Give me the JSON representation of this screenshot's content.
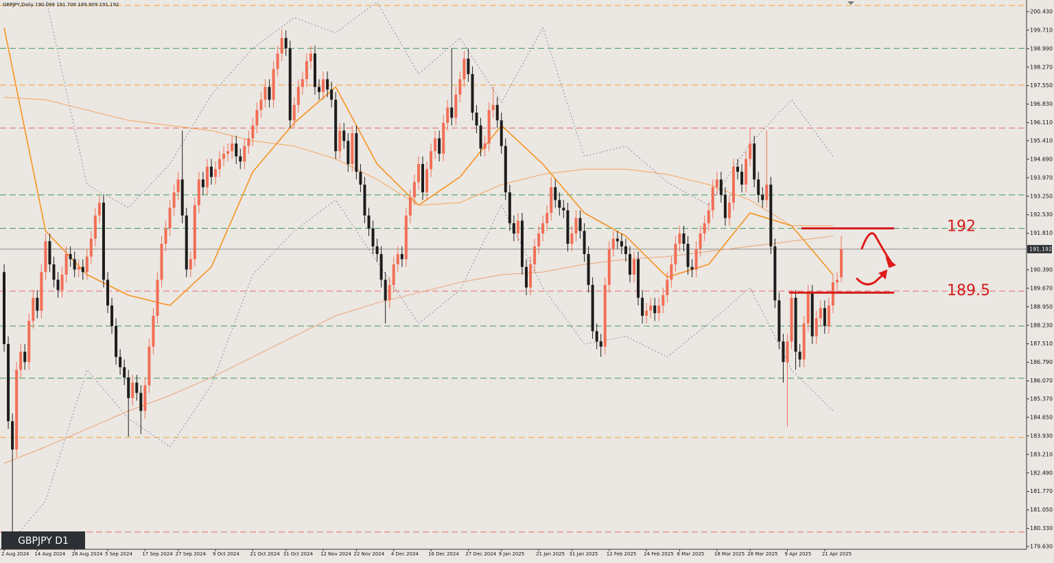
{
  "chart_data": {
    "type": "candlestick",
    "title": "GBPJPY,Daily  190.099 191.708 189.909 191.192",
    "symbol_label": "GBPJPY D1",
    "ylim": [
      179.52,
      200.88
    ],
    "yticks": [
      {
        "value": 200.43,
        "label": "200.430"
      },
      {
        "value": 199.71,
        "label": "199.710"
      },
      {
        "value": 198.99,
        "label": "198.990"
      },
      {
        "value": 198.27,
        "label": "198.270"
      },
      {
        "value": 197.55,
        "label": "197.550"
      },
      {
        "value": 196.83,
        "label": "196.830"
      },
      {
        "value": 196.11,
        "label": "196.110"
      },
      {
        "value": 195.41,
        "label": "195.410"
      },
      {
        "value": 194.69,
        "label": "194.690"
      },
      {
        "value": 193.97,
        "label": "193.970"
      },
      {
        "value": 193.25,
        "label": "193.250"
      },
      {
        "value": 192.53,
        "label": "192.530"
      },
      {
        "value": 191.81,
        "label": "191.810"
      },
      {
        "value": 190.39,
        "label": "190.390"
      },
      {
        "value": 189.67,
        "label": "189.670"
      },
      {
        "value": 188.95,
        "label": "188.950"
      },
      {
        "value": 188.23,
        "label": "188.230"
      },
      {
        "value": 187.51,
        "label": "187.510"
      },
      {
        "value": 186.79,
        "label": "186.790"
      },
      {
        "value": 186.07,
        "label": "186.070"
      },
      {
        "value": 185.37,
        "label": "185.370"
      },
      {
        "value": 184.65,
        "label": "184.650"
      },
      {
        "value": 183.93,
        "label": "183.930"
      },
      {
        "value": 183.21,
        "label": "183.210"
      },
      {
        "value": 182.49,
        "label": "182.490"
      },
      {
        "value": 181.77,
        "label": "181.770"
      },
      {
        "value": 181.05,
        "label": "181.050"
      },
      {
        "value": 180.33,
        "label": "180.330"
      },
      {
        "value": 179.63,
        "label": "179.630"
      }
    ],
    "last_price": {
      "value": 191.192,
      "label": "191.192"
    },
    "bull_color": "#f26e55",
    "bear_color": "#1c1c1c",
    "categories": [
      "2 Aug 2024",
      null,
      null,
      null,
      null,
      null,
      null,
      null,
      "14 Aug 2024",
      null,
      null,
      null,
      null,
      null,
      null,
      null,
      null,
      "26 Aug 2024",
      null,
      null,
      null,
      null,
      null,
      null,
      null,
      "5 Sep 2024",
      null,
      null,
      null,
      null,
      null,
      null,
      null,
      null,
      "17 Sep 2024",
      null,
      null,
      null,
      null,
      null,
      null,
      null,
      "27 Sep 2024",
      null,
      null,
      null,
      null,
      null,
      null,
      null,
      null,
      "9 Oct 2024",
      null,
      null,
      null,
      null,
      null,
      null,
      null,
      null,
      "21 Oct 2024",
      null,
      null,
      null,
      null,
      null,
      null,
      null,
      "31 Oct 2024",
      null,
      null,
      null,
      null,
      null,
      null,
      null,
      null,
      "12 Nov 2024",
      null,
      null,
      null,
      null,
      null,
      null,
      null,
      "22 Nov 2024",
      null,
      null,
      null,
      null,
      null,
      null,
      null,
      null,
      "4 Dec 2024",
      null,
      null,
      null,
      null,
      null,
      null,
      null,
      null,
      "16 Dec 2024",
      null,
      null,
      null,
      null,
      null,
      null,
      null,
      null,
      "27 Dec 2024",
      null,
      null,
      null,
      null,
      null,
      null,
      null,
      "9 Jan 2025",
      null,
      null,
      null,
      null,
      null,
      null,
      null,
      null,
      "21 Jan 2025",
      null,
      null,
      null,
      null,
      null,
      null,
      null,
      "31 Jan 2025",
      null,
      null,
      null,
      null,
      null,
      null,
      null,
      null,
      "12 Feb 2025",
      null,
      null,
      null,
      null,
      null,
      null,
      null,
      null,
      "24 Feb 2025",
      null,
      null,
      null,
      null,
      null,
      null,
      null,
      "6 Mar 2025",
      null,
      null,
      null,
      null,
      null,
      null,
      null,
      null,
      "18 Mar 2025",
      null,
      null,
      null,
      null,
      null,
      null,
      null,
      "28 Mar 2025",
      null,
      null,
      null,
      null,
      null,
      null,
      null,
      null,
      "9 Apr 2025",
      null,
      null,
      null,
      null,
      null,
      null,
      null,
      null,
      "21 Apr 2025",
      null,
      null,
      null,
      null
    ],
    "open": [
      190.3,
      187.5,
      184.5,
      183.4,
      186.5,
      187.2,
      186.8,
      188.4,
      189.3,
      188.8,
      190.3,
      191.5,
      190.6,
      190.0,
      189.6,
      190.2,
      191.0,
      190.8,
      190.4,
      190.5,
      190.3,
      190.9,
      191.6,
      192.5,
      193.0,
      190.0,
      189.0,
      188.2,
      187.0,
      186.6,
      186.2,
      185.4,
      186.0,
      185.6,
      184.9,
      185.9,
      187.4,
      188.6,
      190.0,
      191.4,
      192.0,
      192.8,
      193.4,
      193.9,
      192.5,
      190.4,
      190.8,
      192.9,
      193.9,
      193.6,
      194.4,
      194.0,
      194.3,
      194.7,
      194.9,
      195.0,
      195.3,
      194.8,
      194.6,
      195.2,
      195.5,
      196.0,
      196.6,
      197.0,
      197.5,
      197.0,
      198.2,
      198.8,
      199.4,
      199.0,
      196.2,
      196.8,
      197.5,
      197.8,
      198.5,
      198.8,
      197.5,
      197.3,
      197.8,
      197.4,
      197.0,
      195.0,
      195.8,
      195.4,
      194.5,
      195.7,
      194.2,
      193.7,
      192.5,
      192.0,
      191.3,
      191.0,
      190.0,
      189.2,
      189.8,
      190.6,
      191.0,
      190.8,
      192.5,
      193.2,
      193.8,
      194.5,
      193.4,
      194.3,
      195.0,
      195.5,
      194.9,
      196.1,
      196.7,
      196.3,
      197.2,
      197.8,
      198.6,
      198.0,
      196.5,
      196.0,
      195.1,
      195.3,
      196.6,
      196.8,
      196.2,
      195.2,
      193.4,
      192.2,
      191.8,
      192.3,
      190.5,
      189.7,
      190.6,
      191.3,
      191.8,
      192.2,
      192.6,
      193.6,
      193.1,
      192.8,
      192.7,
      191.4,
      191.8,
      192.4,
      191.9,
      191.0,
      189.8,
      188.0,
      187.6,
      187.4,
      189.8,
      191.2,
      191.6,
      191.5,
      191.3,
      191.0,
      190.2,
      190.8,
      189.3,
      188.6,
      188.8,
      189.0,
      188.7,
      189.0,
      189.4,
      190.0,
      190.6,
      191.4,
      191.8,
      191.4,
      190.5,
      190.4,
      191.2,
      191.8,
      192.2,
      192.7,
      193.6,
      193.9,
      193.3,
      192.4,
      193.0,
      194.4,
      194.2,
      193.7,
      194.7,
      195.3,
      193.9,
      193.3,
      193.1,
      193.7,
      191.3,
      189.2,
      187.6,
      186.8,
      187.6,
      189.3,
      187.2,
      186.9,
      188.3,
      189.5,
      187.8,
      188.5,
      188.9,
      188.2,
      189.0,
      189.9,
      190.099
    ],
    "high": [
      190.6,
      187.8,
      184.8,
      186.8,
      187.5,
      187.5,
      188.7,
      189.6,
      189.6,
      190.6,
      191.8,
      191.8,
      190.9,
      190.3,
      190.5,
      191.3,
      191.3,
      191.1,
      190.8,
      190.8,
      191.2,
      191.9,
      192.8,
      193.3,
      193.3,
      190.3,
      189.3,
      188.5,
      187.3,
      186.9,
      186.5,
      186.3,
      186.3,
      185.9,
      186.2,
      187.7,
      188.9,
      190.3,
      191.7,
      192.3,
      193.1,
      193.7,
      194.2,
      195.8,
      192.8,
      191.1,
      193.2,
      194.2,
      194.2,
      194.7,
      194.7,
      194.6,
      195.0,
      195.2,
      195.3,
      195.6,
      195.6,
      195.1,
      195.5,
      195.8,
      196.3,
      196.9,
      197.3,
      197.8,
      197.8,
      198.5,
      199.1,
      199.75,
      199.7,
      199.3,
      197.1,
      197.8,
      198.1,
      198.8,
      199.1,
      199.1,
      197.8,
      198.1,
      198.1,
      197.7,
      197.3,
      196.1,
      196.1,
      195.7,
      196.0,
      196.0,
      194.5,
      194.0,
      192.8,
      192.3,
      191.6,
      191.3,
      190.3,
      190.1,
      190.9,
      191.3,
      191.3,
      192.8,
      193.5,
      194.1,
      194.8,
      194.8,
      194.6,
      195.3,
      195.8,
      195.8,
      196.4,
      197.0,
      199.0,
      197.5,
      198.1,
      198.9,
      199.0,
      198.3,
      196.8,
      196.3,
      195.6,
      196.9,
      197.5,
      197.1,
      196.5,
      195.5,
      193.7,
      192.5,
      192.6,
      192.6,
      190.8,
      190.9,
      191.6,
      192.1,
      192.5,
      192.9,
      194.0,
      193.9,
      193.4,
      193.1,
      193.0,
      192.1,
      192.7,
      192.7,
      192.2,
      191.3,
      190.1,
      188.3,
      187.9,
      190.1,
      191.5,
      191.9,
      191.9,
      191.8,
      191.6,
      191.3,
      191.1,
      191.1,
      189.6,
      189.1,
      189.3,
      189.3,
      189.3,
      189.7,
      190.3,
      190.9,
      191.7,
      192.1,
      192.1,
      191.7,
      190.8,
      191.5,
      192.1,
      192.5,
      193.0,
      193.9,
      194.2,
      194.2,
      193.6,
      193.3,
      194.7,
      194.7,
      194.5,
      195.0,
      195.9,
      195.6,
      194.2,
      193.6,
      195.8,
      194.0,
      191.6,
      189.5,
      187.9,
      187.9,
      189.6,
      189.6,
      187.5,
      188.6,
      189.8,
      189.8,
      188.8,
      189.2,
      189.2,
      189.3,
      190.2,
      190.3,
      191.708
    ],
    "low": [
      187.2,
      184.2,
      180.2,
      183.1,
      186.2,
      186.5,
      186.5,
      188.1,
      188.5,
      188.5,
      190.0,
      190.3,
      189.7,
      189.3,
      189.3,
      189.9,
      190.5,
      190.1,
      190.1,
      190.0,
      190.0,
      190.6,
      191.3,
      192.2,
      189.7,
      188.7,
      187.9,
      186.7,
      186.3,
      185.9,
      183.9,
      185.1,
      185.3,
      184.0,
      184.6,
      185.6,
      187.1,
      188.3,
      189.7,
      191.1,
      191.7,
      192.5,
      193.1,
      192.2,
      190.1,
      190.1,
      190.5,
      192.6,
      193.3,
      193.3,
      193.7,
      193.7,
      194.0,
      194.4,
      194.6,
      194.7,
      194.5,
      194.3,
      194.3,
      194.9,
      195.2,
      195.7,
      196.3,
      196.7,
      196.7,
      196.7,
      197.9,
      198.5,
      198.7,
      195.9,
      195.9,
      196.5,
      197.2,
      197.5,
      198.2,
      197.2,
      197.0,
      197.0,
      197.1,
      196.7,
      194.7,
      194.7,
      195.1,
      194.2,
      194.2,
      193.9,
      193.4,
      192.2,
      191.7,
      191.0,
      190.7,
      189.7,
      188.3,
      188.9,
      189.5,
      190.3,
      190.5,
      190.5,
      192.2,
      192.9,
      193.5,
      193.1,
      193.1,
      194.0,
      194.7,
      194.6,
      194.6,
      195.8,
      196.0,
      196.0,
      196.9,
      197.5,
      197.7,
      196.2,
      195.7,
      194.8,
      194.8,
      195.0,
      196.3,
      195.9,
      194.9,
      193.1,
      191.9,
      191.5,
      191.5,
      190.2,
      189.4,
      189.4,
      190.3,
      191.0,
      191.5,
      191.9,
      192.3,
      192.8,
      192.5,
      192.4,
      191.1,
      191.1,
      191.5,
      191.6,
      190.7,
      189.5,
      187.7,
      187.3,
      187.0,
      187.1,
      189.5,
      190.9,
      191.2,
      191.0,
      190.7,
      189.9,
      189.9,
      189.0,
      188.3,
      188.3,
      188.5,
      188.4,
      188.4,
      188.7,
      189.1,
      189.7,
      190.3,
      191.1,
      191.1,
      190.2,
      190.1,
      190.1,
      190.9,
      191.5,
      191.9,
      192.4,
      193.3,
      193.0,
      192.1,
      192.1,
      192.7,
      193.9,
      193.4,
      193.4,
      194.4,
      193.6,
      193.0,
      192.8,
      192.8,
      191.0,
      188.9,
      187.3,
      186.0,
      184.3,
      187.3,
      186.5,
      186.6,
      186.6,
      188.0,
      187.5,
      187.5,
      188.2,
      187.9,
      187.9,
      188.7,
      189.6,
      189.909
    ],
    "close": [
      187.5,
      184.5,
      183.4,
      186.5,
      187.2,
      186.8,
      188.4,
      189.3,
      188.8,
      190.3,
      191.5,
      190.6,
      190.0,
      189.6,
      190.2,
      191.0,
      190.8,
      190.4,
      190.5,
      190.3,
      190.9,
      191.6,
      192.5,
      193.0,
      190.0,
      189.0,
      188.2,
      187.0,
      186.6,
      186.2,
      185.4,
      186.0,
      185.6,
      184.9,
      185.9,
      187.4,
      188.6,
      190.0,
      191.4,
      192.0,
      192.8,
      193.4,
      193.9,
      192.5,
      190.4,
      190.8,
      192.9,
      193.9,
      193.6,
      194.4,
      194.0,
      194.3,
      194.7,
      194.9,
      195.0,
      195.3,
      194.8,
      194.6,
      195.2,
      195.5,
      196.0,
      196.6,
      197.0,
      197.5,
      197.0,
      198.2,
      198.8,
      199.4,
      199.0,
      196.2,
      196.8,
      197.5,
      197.8,
      198.5,
      198.8,
      197.5,
      197.3,
      197.8,
      197.4,
      197.0,
      195.0,
      195.8,
      195.4,
      194.5,
      195.7,
      194.2,
      193.7,
      192.5,
      192.0,
      191.3,
      191.0,
      190.0,
      189.2,
      189.8,
      190.6,
      191.0,
      190.8,
      192.5,
      193.2,
      193.8,
      194.5,
      193.4,
      194.3,
      195.0,
      195.5,
      194.9,
      196.1,
      196.7,
      196.3,
      197.2,
      197.8,
      198.6,
      198.0,
      196.5,
      196.0,
      195.1,
      195.3,
      196.6,
      196.8,
      196.2,
      195.2,
      193.4,
      192.2,
      191.8,
      192.3,
      190.5,
      189.7,
      190.6,
      191.3,
      191.8,
      192.2,
      192.6,
      193.6,
      193.1,
      192.8,
      192.7,
      191.4,
      191.8,
      192.4,
      191.9,
      191.0,
      189.8,
      188.0,
      187.6,
      187.4,
      189.8,
      191.2,
      191.6,
      191.5,
      191.3,
      191.0,
      190.2,
      190.8,
      189.3,
      188.6,
      188.8,
      189.0,
      188.7,
      189.0,
      189.4,
      190.0,
      190.6,
      191.4,
      191.8,
      191.4,
      190.5,
      190.4,
      191.2,
      191.8,
      192.2,
      192.7,
      193.6,
      193.9,
      193.3,
      192.4,
      193.0,
      194.4,
      194.2,
      193.7,
      194.7,
      195.3,
      193.9,
      193.3,
      193.1,
      193.7,
      191.3,
      189.2,
      187.6,
      186.8,
      187.6,
      189.3,
      187.2,
      186.9,
      188.3,
      189.5,
      187.8,
      188.5,
      188.9,
      188.2,
      189.0,
      189.9,
      190.0,
      191.192
    ],
    "hlines": [
      {
        "value": 200.67,
        "color": "#f0a23a"
      },
      {
        "value": 199.0,
        "color": "#3d9a5c"
      },
      {
        "value": 197.57,
        "color": "#f0a23a"
      },
      {
        "value": 195.9,
        "color": "#e36a6a"
      },
      {
        "value": 193.3,
        "color": "#3d9a5c"
      },
      {
        "value": 192.0,
        "color": "#3d9a5c"
      },
      {
        "value": 189.56,
        "color": "#e36a6a"
      },
      {
        "value": 188.2,
        "color": "#3d9a5c"
      },
      {
        "value": 186.17,
        "color": "#3d9a5c"
      },
      {
        "value": 183.87,
        "color": "#f0a23a"
      },
      {
        "value": 180.19,
        "color": "#e36a6a"
      }
    ],
    "indicators": [
      {
        "color": "#f7931e",
        "width": 1.6,
        "dash": "none",
        "values": [
          199.8,
          191.9,
          190.2,
          189.4,
          189.0,
          190.5,
          194.2,
          196.1,
          197.5,
          194.5,
          192.9,
          194.0,
          196.0,
          194.5,
          192.6,
          191.7,
          190.1,
          190.6,
          192.6,
          192.1,
          190.2
        ]
      },
      {
        "color": "#f5a35c",
        "width": 1,
        "dash": "none",
        "values": [
          197.1,
          197.0,
          196.6,
          196.2,
          196.0,
          195.8,
          195.4,
          195.2,
          194.7,
          193.9,
          192.9,
          193.0,
          193.7,
          194.1,
          194.3,
          194.3,
          194.1,
          193.7,
          193.1,
          192.1,
          192.1
        ]
      },
      {
        "color": "#e9a376",
        "width": 1,
        "dash": "none",
        "values": [
          182.86,
          183.5,
          184.2,
          184.9,
          185.5,
          186.2,
          187.0,
          187.8,
          188.6,
          189.1,
          189.5,
          189.9,
          190.2,
          190.3,
          190.6,
          190.8,
          190.9,
          191.1,
          191.3,
          191.5,
          191.7
        ]
      },
      {
        "color": "#8a8aa8",
        "width": 1,
        "dash": "2,3",
        "values": [
          201.5,
          201.0,
          193.7,
          192.8,
          194.5,
          197.2,
          199.0,
          200.2,
          199.6,
          200.8,
          198.0,
          199.4,
          196.9,
          199.8,
          194.8,
          195.2,
          193.8,
          192.9,
          195.3,
          197.0,
          194.8
        ]
      },
      {
        "color": "#8a8aa8",
        "width": 1,
        "dash": "2,3",
        "values": [
          179.5,
          181.4,
          186.5,
          184.6,
          183.5,
          185.9,
          190.2,
          191.9,
          193.1,
          190.7,
          188.3,
          189.6,
          192.9,
          189.7,
          187.5,
          187.8,
          187.0,
          188.3,
          189.7,
          186.5,
          184.9
        ]
      }
    ],
    "levels": [
      192,
      189.5
    ],
    "level_color": "#d41a1a"
  }
}
